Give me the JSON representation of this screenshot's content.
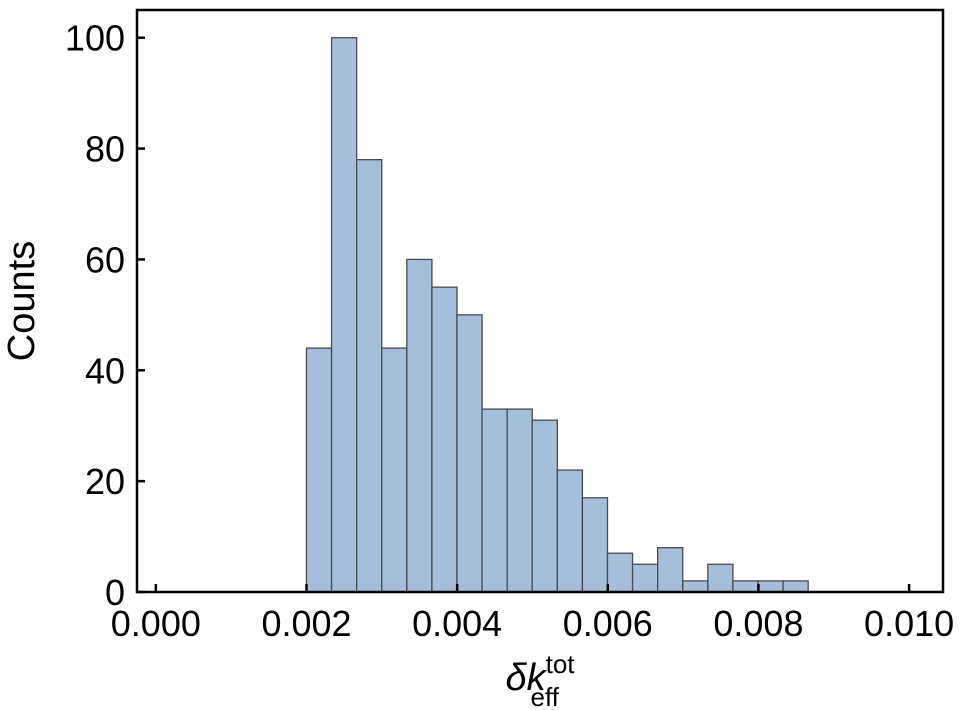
{
  "chart_data": {
    "type": "bar",
    "title": "",
    "xlabel_base": "δk",
    "xlabel_sup": "tot",
    "xlabel_sub": "eff",
    "ylabel": "Counts",
    "xlim": [
      -0.00025,
      0.01045
    ],
    "ylim": [
      0,
      105
    ],
    "xticks": [
      0.0,
      0.002,
      0.004,
      0.006,
      0.008,
      0.01
    ],
    "xtick_labels": [
      "0.000",
      "0.002",
      "0.004",
      "0.006",
      "0.008",
      "0.010"
    ],
    "yticks": [
      0,
      20,
      40,
      60,
      80,
      100
    ],
    "ytick_labels": [
      "0",
      "20",
      "40",
      "60",
      "80",
      "100"
    ],
    "bin_start": 0.002,
    "bin_width": 0.000333,
    "values": [
      44,
      100,
      78,
      44,
      60,
      55,
      50,
      33,
      33,
      31,
      22,
      17,
      7,
      5,
      8,
      2,
      5,
      2,
      2,
      2
    ],
    "bar_color": "#a5bfdb",
    "edge_color": "#4a4a4a",
    "grid": false,
    "legend": "none"
  }
}
